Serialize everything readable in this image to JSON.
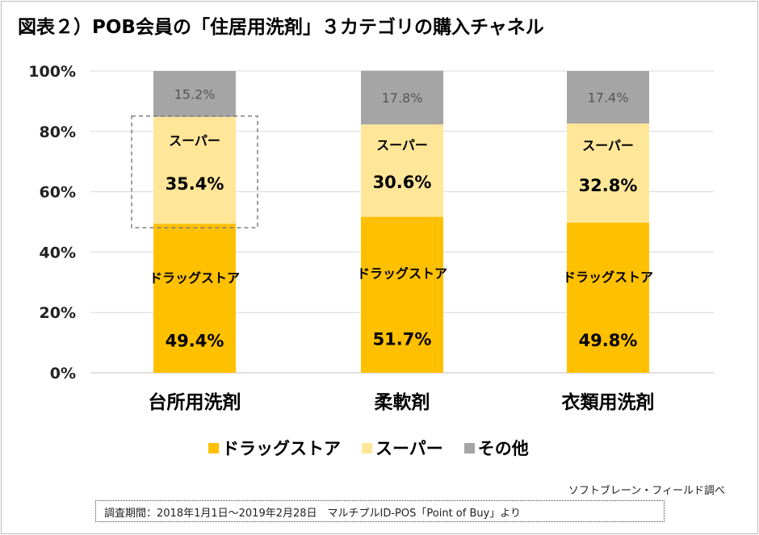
{
  "title": "図表２）POB会員の「住居用洗剤」３カテゴリの購入チャネル",
  "chart_data": {
    "type": "bar",
    "stacked": true,
    "percent_stacked": true,
    "categories": [
      "台所用洗剤",
      "柔軟剤",
      "衣類用洗剤"
    ],
    "series": [
      {
        "name": "ドラッグストア",
        "values": [
          49.4,
          51.7,
          49.8
        ],
        "color": "#FFC000",
        "labels": [
          "49.4%",
          "51.7%",
          "49.8%"
        ]
      },
      {
        "name": "スーパー",
        "values": [
          35.4,
          30.6,
          32.8
        ],
        "color": "#FFE699",
        "labels": [
          "35.4%",
          "30.6%",
          "32.8%"
        ]
      },
      {
        "name": "その他",
        "values": [
          15.2,
          17.8,
          17.4
        ],
        "color": "#A5A5A5",
        "labels": [
          "15.2%",
          "17.8%",
          "17.4%"
        ]
      }
    ],
    "ylim": [
      0,
      100
    ],
    "yticks": [
      "0%",
      "20%",
      "40%",
      "60%",
      "80%",
      "100%"
    ],
    "grid": true,
    "legend_position": "bottom",
    "highlight": {
      "category": "台所用洗剤",
      "series": "スーパー",
      "value_color": "#FF0000",
      "box": "dashed"
    }
  },
  "source": "ソフトブレーン・フィールド調べ",
  "note": "調査期間：2018年1月1日～2019年2月28日　マルチプルID-POS「Point of Buy」より"
}
